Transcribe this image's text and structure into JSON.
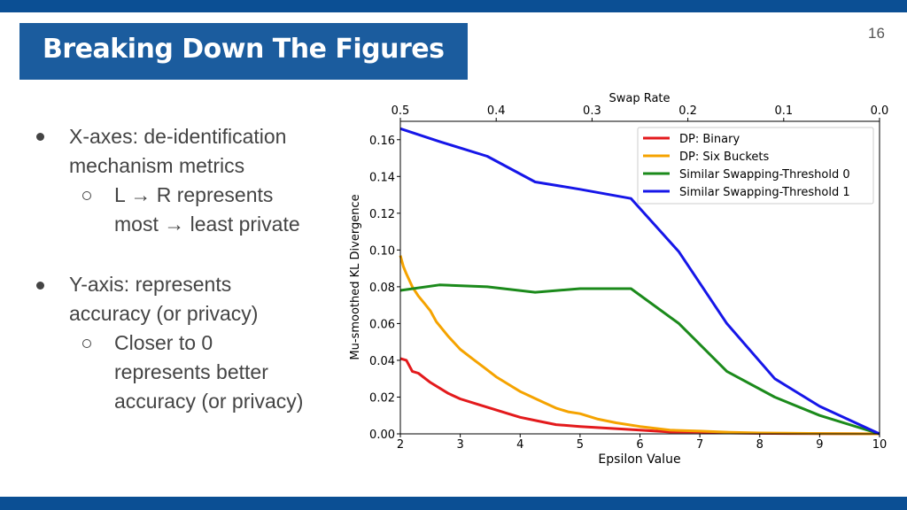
{
  "slide": {
    "title": "Breaking Down The Figures",
    "page_number": "16",
    "bullets": [
      {
        "text_lines": [
          "X-axes: de-identification",
          "mechanism metrics"
        ],
        "sub": {
          "text_lines": [
            "L → R represents",
            "most → least private"
          ]
        }
      },
      {
        "text_lines": [
          "Y-axis: represents",
          "accuracy (or privacy)"
        ],
        "sub": {
          "text_lines": [
            "Closer to 0",
            "represents better",
            "accuracy (or privacy)"
          ]
        }
      }
    ],
    "colors": {
      "title_bg": "#1b5c9e",
      "bars": "#0b4f94"
    }
  },
  "chart_data": {
    "type": "line",
    "xlabel": "Epsilon Value",
    "ylabel": "Mu-smoothed KL Divergence",
    "x2label": "Swap Rate",
    "xlim": [
      2,
      10
    ],
    "ylim": [
      0,
      0.17
    ],
    "x_ticks": [
      "2",
      "3",
      "4",
      "5",
      "6",
      "7",
      "8",
      "9",
      "10"
    ],
    "y_ticks": [
      "0.00",
      "0.02",
      "0.04",
      "0.06",
      "0.08",
      "0.10",
      "0.12",
      "0.14",
      "0.16"
    ],
    "x2_ticks": [
      "0.5",
      "0.4",
      "0.3",
      "0.2",
      "0.1",
      "0.0"
    ],
    "legend_position": "top-right",
    "grid": false,
    "series": [
      {
        "name": "DP: Binary",
        "color": "#e31a1c",
        "x": [
          2.0,
          2.1,
          2.2,
          2.3,
          2.5,
          2.8,
          3.0,
          3.3,
          3.5,
          3.8,
          4.0,
          4.3,
          4.6,
          5.0,
          5.5,
          6.0,
          6.5,
          7.0,
          7.5,
          8.0,
          9.0,
          10.0
        ],
        "y": [
          0.041,
          0.04,
          0.034,
          0.033,
          0.028,
          0.022,
          0.019,
          0.016,
          0.014,
          0.011,
          0.009,
          0.007,
          0.005,
          0.004,
          0.003,
          0.002,
          0.001,
          0.001,
          0.0005,
          0.0003,
          0.0001,
          0.0
        ]
      },
      {
        "name": "DP: Six Buckets",
        "color": "#f5a300",
        "x": [
          2.0,
          2.05,
          2.1,
          2.2,
          2.3,
          2.4,
          2.5,
          2.6,
          2.8,
          3.0,
          3.2,
          3.4,
          3.6,
          3.8,
          4.0,
          4.2,
          4.4,
          4.6,
          4.8,
          5.0,
          5.3,
          5.6,
          6.0,
          6.5,
          7.0,
          7.5,
          8.0,
          9.0,
          10.0
        ],
        "y": [
          0.097,
          0.091,
          0.087,
          0.08,
          0.075,
          0.071,
          0.067,
          0.061,
          0.053,
          0.046,
          0.041,
          0.036,
          0.031,
          0.027,
          0.023,
          0.02,
          0.017,
          0.014,
          0.012,
          0.011,
          0.008,
          0.006,
          0.004,
          0.002,
          0.0015,
          0.0008,
          0.0005,
          0.0002,
          0.0
        ]
      },
      {
        "name": "Similar Swapping-Threshold 0",
        "color": "#1b8a1b",
        "x": [
          2.0,
          2.65,
          3.45,
          4.25,
          5.0,
          5.85,
          6.65,
          7.45,
          8.25,
          9.0,
          10.0
        ],
        "y": [
          0.078,
          0.081,
          0.08,
          0.077,
          0.079,
          0.079,
          0.06,
          0.034,
          0.02,
          0.01,
          0.0
        ]
      },
      {
        "name": "Similar Swapping-Threshold 1",
        "color": "#1616e8",
        "x": [
          2.0,
          2.65,
          3.45,
          4.25,
          5.0,
          5.85,
          6.65,
          7.45,
          8.25,
          9.0,
          10.0
        ],
        "y": [
          0.166,
          0.159,
          0.151,
          0.137,
          0.133,
          0.128,
          0.099,
          0.06,
          0.03,
          0.015,
          0.0
        ]
      }
    ]
  }
}
